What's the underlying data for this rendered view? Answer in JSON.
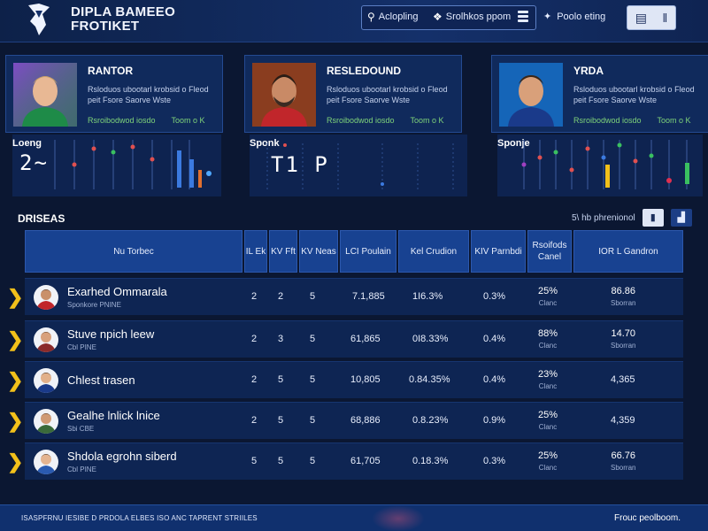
{
  "header": {
    "brand_line1": "DIPLA BAMEEO",
    "brand_line2": "FROTIKET",
    "toolbar": {
      "search_label": "Aclopling",
      "settings_label": "Srolhkos ppom"
    },
    "profile_label": "Poolo eting"
  },
  "cards": [
    {
      "name": "RANTOR",
      "desc": "Rsloduos ubootarl krobsid o Fleod peit Fsore Saorve Wste",
      "meta_left": "Rsroibodwod iosdo",
      "meta_right": "Toom o K",
      "photo_bg": "#5b3aa0",
      "jersey": "#1e8b48"
    },
    {
      "name": "RESLEDOUND",
      "desc": "Rsloduos ubootarl krobsid o Fleod peit Fsore Saorve Wste",
      "meta_left": "Rsroibodwod iosdo",
      "meta_right": "Toom o K",
      "photo_bg": "#8a3d1f",
      "jersey": "#c1262b"
    },
    {
      "name": "YRDA",
      "desc": "Rsloduos ubootarl krobsid o Fleod peit Fsore Saorve Wste",
      "meta_left": "Rsroibodwod iosdo",
      "meta_right": "Toom o K",
      "photo_bg": "#1565b8",
      "jersey": "#1a3a8a"
    }
  ],
  "sparks": [
    {
      "label": "Loeng",
      "value": "2~"
    },
    {
      "label": "Sponk",
      "value": "T1   P"
    },
    {
      "label": "Sponje",
      "value": ""
    }
  ],
  "section": {
    "title": "DRISEAS",
    "right_text": "5\\ hb phrenionol"
  },
  "columns": [
    "Nu Torbec",
    "IL Ek",
    "KV Fft",
    "KV Neas",
    "LCI Poulain",
    "Kel Crudion",
    "KIV Parnbdi",
    "Rsoifods Canel",
    "IOR L Gandron"
  ],
  "rows": [
    {
      "name": "Exarhed Ommarala",
      "sub": "Sponkore PNINE",
      "c1": "2",
      "c2": "2",
      "c3": "5",
      "c4": "7.1,885",
      "c5": "1I6.3%",
      "c6": "0.3%",
      "c7": "25%",
      "c7s": "Clanc",
      "c8": "86.86",
      "c8s": "Sborran"
    },
    {
      "name": "Stuve npich leew",
      "sub": "Cbl PINE",
      "c1": "2",
      "c2": "3",
      "c3": "5",
      "c4": "61,865",
      "c5": "0I8.33%",
      "c6": "0.4%",
      "c7": "88%",
      "c7s": "Clanc",
      "c8": "14.70",
      "c8s": "Sborran"
    },
    {
      "name": "Chlest trasen",
      "sub": "",
      "c1": "2",
      "c2": "5",
      "c3": "5",
      "c4": "10,805",
      "c5": "0.84.35%",
      "c6": "0.4%",
      "c7": "23%",
      "c7s": "Clanc",
      "c8": "4,365",
      "c8s": ""
    },
    {
      "name": "Gealhe lnlick lnice",
      "sub": "Sbi CBE",
      "c1": "2",
      "c2": "5",
      "c3": "5",
      "c4": "68,886",
      "c5": "0.8.23%",
      "c6": "0.9%",
      "c7": "25%",
      "c7s": "Clanc",
      "c8": "4,359",
      "c8s": ""
    },
    {
      "name": "Shdola egrohn siberd",
      "sub": "Cbl PINE",
      "c1": "5",
      "c2": "5",
      "c3": "5",
      "c4": "61,705",
      "c5": "0.18.3%",
      "c6": "0.3%",
      "c7": "25%",
      "c7s": "Clanc",
      "c8": "66.76",
      "c8s": "Sborran"
    }
  ],
  "footer": {
    "left": "ISASPFRNU IESIBE D PRDOLA ELBES ISO ANC TAPRENT STRIILES",
    "right": "Frouc peolboom."
  },
  "icons": {
    "search": "search-icon",
    "settings": "settings-icon",
    "menu": "menu-icon",
    "profile": "profile-icon",
    "row_expand": "chevron-right-icon"
  },
  "colors": {
    "accent_yellow": "#f2c01a",
    "header_blue": "#14306a",
    "table_header": "#184291"
  }
}
